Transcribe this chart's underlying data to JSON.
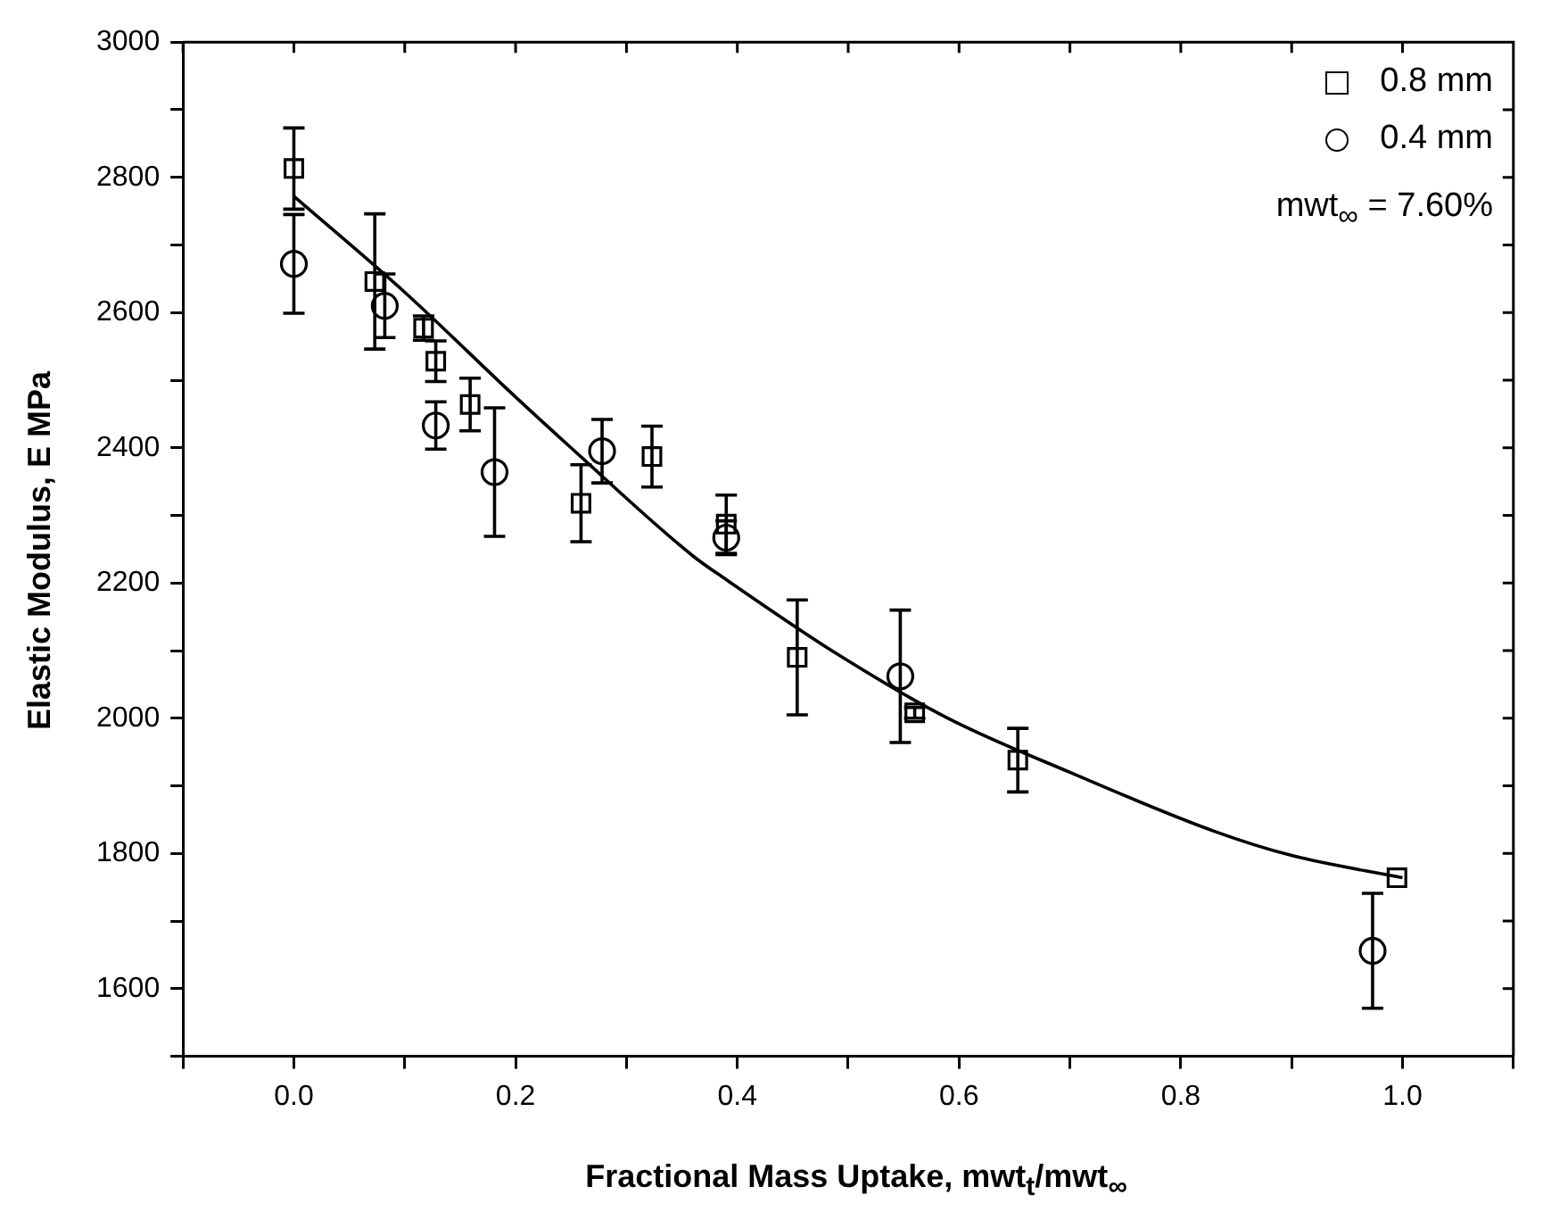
{
  "chart_data": {
    "type": "scatter",
    "xlabel": "Fractional Mass Uptake, mwt$_{t}$/mwt$_{∞}$",
    "ylabel": "Elastic Modulus, E MPa",
    "annotations": [
      "mwt$_{∞}$ = 7.60%"
    ],
    "xlim": [
      -0.1,
      1.1
    ],
    "ylim": [
      1500,
      3000
    ],
    "xticks": [
      {
        "value": -0.1,
        "label": null
      },
      {
        "value": 0,
        "label": "0.0"
      },
      {
        "value": 0.1,
        "label": null
      },
      0.2,
      {
        "value": 0.3,
        "label": null
      },
      0.4,
      {
        "value": 0.5,
        "label": null
      },
      0.6,
      {
        "value": 0.7,
        "label": null
      },
      0.8,
      {
        "value": 0.9,
        "label": null
      },
      {
        "value": 1,
        "label": "1.0"
      },
      {
        "value": 1.1,
        "label": null
      }
    ],
    "yticks": [
      {
        "value": 1500,
        "label": null
      },
      1600,
      {
        "value": 1700,
        "label": null
      },
      1800,
      {
        "value": 1900,
        "label": null
      },
      2000,
      {
        "value": 2100,
        "label": null
      },
      2200,
      {
        "value": 2300,
        "label": null
      },
      2400,
      {
        "value": 2500,
        "label": null
      },
      2600,
      {
        "value": 2700,
        "label": null
      },
      2800,
      {
        "value": 2900,
        "label": null
      },
      3000
    ],
    "grid": false,
    "legend": "top right",
    "series": [
      {
        "name": "0.8 mm",
        "color": "#000000",
        "marker": "square",
        "x": [
          0,
          0.073,
          0.117,
          0.128,
          0.159,
          0.259,
          0.323,
          0.39,
          0.454,
          0.56,
          0.653,
          0.995
        ],
        "values": [
          2813,
          2646,
          2577,
          2528,
          2464,
          2318,
          2387,
          2287,
          2090,
          2008,
          1938,
          1764
        ],
        "errors": [
          60,
          100,
          18,
          30,
          39,
          57,
          45,
          43,
          85,
          8,
          47,
          null
        ]
      },
      {
        "name": "0.4 mm",
        "color": "#000000",
        "marker": "circle",
        "x": [
          0,
          0.082,
          0.128,
          0.181,
          0.278,
          0.39,
          0.547,
          0.973
        ],
        "values": [
          2672,
          2610,
          2433,
          2364,
          2395,
          2267,
          2062,
          1656
        ],
        "errors": [
          73,
          47,
          35,
          95,
          47,
          25,
          98,
          85
        ]
      },
      {
        "type": "line",
        "color": "#000000",
        "marker": "none",
        "line_style": "solid",
        "x": [
          0,
          0.1,
          0.2,
          0.25,
          0.36,
          0.39,
          0.49,
          0.59,
          0.7,
          0.83,
          0.9,
          1.0
        ],
        "values": [
          2772,
          2630,
          2475,
          2400,
          2240,
          2205,
          2095,
          2000,
          1920,
          1833,
          1797,
          1764
        ]
      }
    ]
  }
}
